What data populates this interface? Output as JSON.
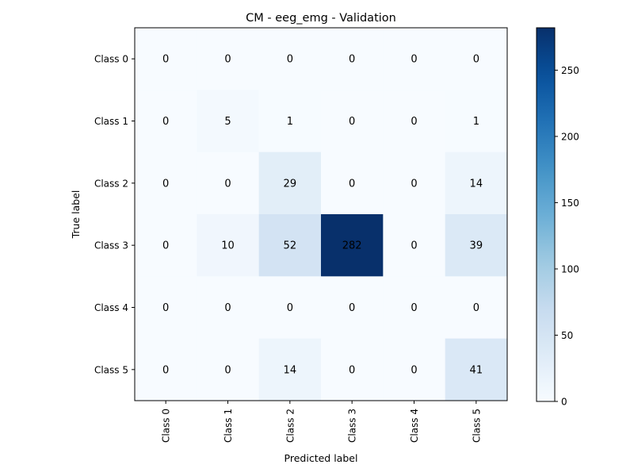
{
  "chart_data": {
    "type": "heatmap",
    "title": "CM - eeg_emg - Validation",
    "xlabel": "Predicted label",
    "ylabel": "True label",
    "x_categories": [
      "Class 0",
      "Class 1",
      "Class 2",
      "Class 3",
      "Class 4",
      "Class 5"
    ],
    "y_categories": [
      "Class 0",
      "Class 1",
      "Class 2",
      "Class 3",
      "Class 4",
      "Class 5"
    ],
    "values": [
      [
        0,
        0,
        0,
        0,
        0,
        0
      ],
      [
        0,
        5,
        1,
        0,
        0,
        1
      ],
      [
        0,
        0,
        29,
        0,
        0,
        14
      ],
      [
        0,
        10,
        52,
        282,
        0,
        39
      ],
      [
        0,
        0,
        0,
        0,
        0,
        0
      ],
      [
        0,
        0,
        14,
        0,
        0,
        41
      ]
    ],
    "colormap": "Blues",
    "color_range": [
      0,
      282
    ],
    "colorbar_ticks": [
      0,
      50,
      100,
      150,
      200,
      250
    ],
    "low_color": "#f7fbff",
    "high_color": "#08306b",
    "text_dark_color": "#08306b",
    "text_light_color": "#f7fbff"
  }
}
